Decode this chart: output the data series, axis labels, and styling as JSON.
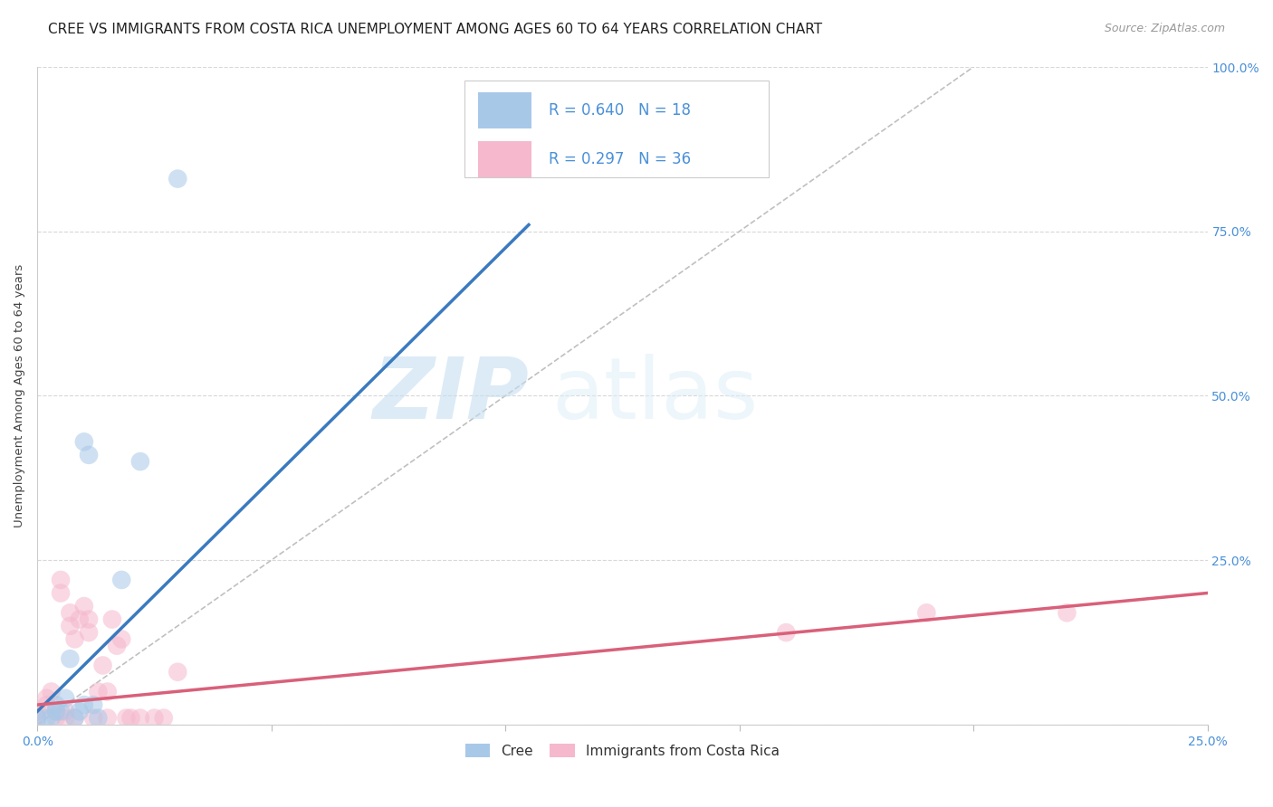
{
  "title": "CREE VS IMMIGRANTS FROM COSTA RICA UNEMPLOYMENT AMONG AGES 60 TO 64 YEARS CORRELATION CHART",
  "source": "Source: ZipAtlas.com",
  "ylabel": "Unemployment Among Ages 60 to 64 years",
  "xlim": [
    0.0,
    0.25
  ],
  "ylim": [
    0.0,
    1.0
  ],
  "yticks": [
    0.0,
    0.25,
    0.5,
    0.75,
    1.0
  ],
  "yticklabels_right": [
    "",
    "25.0%",
    "50.0%",
    "75.0%",
    "100.0%"
  ],
  "watermark_zip": "ZIP",
  "watermark_atlas": "atlas",
  "cree_color": "#a8c8e8",
  "cree_line_color": "#3a7abf",
  "costa_rica_color": "#f5b8cc",
  "costa_rica_line_color": "#d9607a",
  "diagonal_color": "#c0c0c0",
  "R_cree": 0.64,
  "N_cree": 18,
  "R_costa_rica": 0.297,
  "N_costa_rica": 36,
  "cree_line_x": [
    0.0,
    0.105
  ],
  "cree_line_y": [
    0.02,
    0.76
  ],
  "costa_rica_line_x": [
    0.0,
    0.25
  ],
  "costa_rica_line_y": [
    0.03,
    0.2
  ],
  "cree_x": [
    0.0,
    0.002,
    0.003,
    0.004,
    0.004,
    0.005,
    0.006,
    0.007,
    0.008,
    0.009,
    0.01,
    0.01,
    0.011,
    0.012,
    0.013,
    0.018,
    0.022,
    0.03
  ],
  "cree_y": [
    0.01,
    0.01,
    0.01,
    0.02,
    0.03,
    0.02,
    0.04,
    0.1,
    0.01,
    0.02,
    0.03,
    0.43,
    0.41,
    0.03,
    0.01,
    0.22,
    0.4,
    0.83
  ],
  "costa_rica_x": [
    0.0,
    0.0,
    0.002,
    0.002,
    0.003,
    0.004,
    0.004,
    0.005,
    0.005,
    0.006,
    0.006,
    0.007,
    0.007,
    0.008,
    0.008,
    0.009,
    0.01,
    0.011,
    0.011,
    0.012,
    0.013,
    0.014,
    0.015,
    0.015,
    0.016,
    0.017,
    0.018,
    0.019,
    0.02,
    0.022,
    0.025,
    0.027,
    0.03,
    0.16,
    0.19,
    0.22
  ],
  "costa_rica_y": [
    0.01,
    0.02,
    0.03,
    0.04,
    0.05,
    0.01,
    0.02,
    0.2,
    0.22,
    0.01,
    0.02,
    0.15,
    0.17,
    0.01,
    0.13,
    0.16,
    0.18,
    0.14,
    0.16,
    0.01,
    0.05,
    0.09,
    0.01,
    0.05,
    0.16,
    0.12,
    0.13,
    0.01,
    0.01,
    0.01,
    0.01,
    0.01,
    0.08,
    0.14,
    0.17,
    0.17
  ],
  "grid_color": "#d8d8d8",
  "title_fontsize": 11,
  "axis_label_fontsize": 9.5,
  "tick_fontsize": 10,
  "legend_fontsize": 12
}
